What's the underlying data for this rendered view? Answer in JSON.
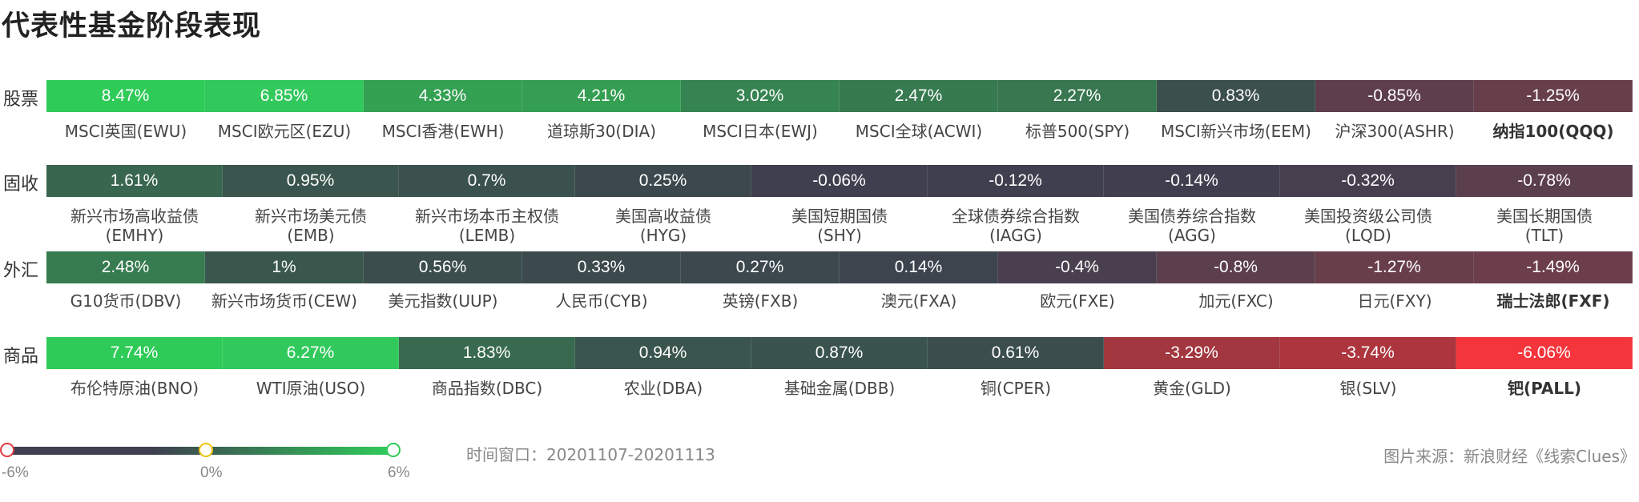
{
  "title": "代表性基金阶段表现",
  "chart_data": {
    "type": "heatmap",
    "color_scale": {
      "min": -6,
      "mid": 0,
      "max": 6,
      "min_color": "#f5323c",
      "mid_color": "#3e3f4f",
      "max_color": "#2fcc5a"
    },
    "rows": [
      {
        "label": "股票",
        "items": [
          {
            "value": "8.47%",
            "num": 8.47,
            "name": "MSCI英国(EWU)",
            "color": "#2fcb58"
          },
          {
            "value": "6.85%",
            "num": 6.85,
            "name": "MSCI欧元区(EZU)",
            "color": "#31c85c"
          },
          {
            "value": "4.33%",
            "num": 4.33,
            "name": "MSCI香港(EWH)",
            "color": "#33a052"
          },
          {
            "value": "4.21%",
            "num": 4.21,
            "name": "道琼斯30(DIA)",
            "color": "#349e52"
          },
          {
            "value": "3.02%",
            "num": 3.02,
            "name": "MSCI日本(EWJ)",
            "color": "#368451"
          },
          {
            "value": "2.47%",
            "num": 2.47,
            "name": "MSCI全球(ACWI)",
            "color": "#377a50"
          },
          {
            "value": "2.27%",
            "num": 2.27,
            "name": "标普500(SPY)",
            "color": "#387750"
          },
          {
            "value": "0.83%",
            "num": 0.83,
            "name": "MSCI新兴市场(EEM)",
            "color": "#3b4f4c"
          },
          {
            "value": "-0.85%",
            "num": -0.85,
            "name": "沪深300(ASHR)",
            "color": "#5e3e4c"
          },
          {
            "value": "-1.25%",
            "num": -1.25,
            "name": "纳指100(QQQ)",
            "color": "#673f4b",
            "bold": true
          }
        ]
      },
      {
        "label": "固收",
        "items": [
          {
            "value": "1.61%",
            "num": 1.61,
            "name": "新兴市场高收益债\n(EMHY)",
            "color": "#39664f"
          },
          {
            "value": "0.95%",
            "num": 0.95,
            "name": "新兴市场美元债\n(EMB)",
            "color": "#3a554d"
          },
          {
            "value": "0.7%",
            "num": 0.7,
            "name": "新兴市场本币主权债\n(LEMB)",
            "color": "#3b514d"
          },
          {
            "value": "0.25%",
            "num": 0.25,
            "name": "美国高收益债\n(HYG)",
            "color": "#3c484d"
          },
          {
            "value": "-0.06%",
            "num": -0.06,
            "name": "美国短期国债\n(SHY)",
            "color": "#3f3f4f"
          },
          {
            "value": "-0.12%",
            "num": -0.12,
            "name": "全球债券综合指数\n(IAGG)",
            "color": "#403f4f"
          },
          {
            "value": "-0.14%",
            "num": -0.14,
            "name": "美国债券综合指数\n(AGG)",
            "color": "#413f4f"
          },
          {
            "value": "-0.32%",
            "num": -0.32,
            "name": "美国投资级公司债\n(LQD)",
            "color": "#473f4e"
          },
          {
            "value": "-0.78%",
            "num": -0.78,
            "name": "美国长期国债\n(TLT)",
            "color": "#5c3f4c"
          }
        ]
      },
      {
        "label": "外汇",
        "items": [
          {
            "value": "2.48%",
            "num": 2.48,
            "name": "G10货币(DBV)",
            "color": "#377b50"
          },
          {
            "value": "1%",
            "num": 1,
            "name": "新兴市场货币(CEW)",
            "color": "#3a574d"
          },
          {
            "value": "0.56%",
            "num": 0.56,
            "name": "美元指数(UUP)",
            "color": "#3b4d4d"
          },
          {
            "value": "0.33%",
            "num": 0.33,
            "name": "人民币(CYB)",
            "color": "#3c494d"
          },
          {
            "value": "0.27%",
            "num": 0.27,
            "name": "英镑(FXB)",
            "color": "#3c474e"
          },
          {
            "value": "0.14%",
            "num": 0.14,
            "name": "澳元(FXA)",
            "color": "#3d444e"
          },
          {
            "value": "-0.4%",
            "num": -0.4,
            "name": "欧元(FXE)",
            "color": "#4a3f4e"
          },
          {
            "value": "-0.8%",
            "num": -0.8,
            "name": "加元(FXC)",
            "color": "#5c3f4c"
          },
          {
            "value": "-1.27%",
            "num": -1.27,
            "name": "日元(FXY)",
            "color": "#683e4b"
          },
          {
            "value": "-1.49%",
            "num": -1.49,
            "name": "瑞士法郎(FXF)",
            "color": "#6c3e4b",
            "bold": true
          }
        ]
      },
      {
        "label": "商品",
        "items": [
          {
            "value": "7.74%",
            "num": 7.74,
            "name": "布伦特原油(BNO)",
            "color": "#2fcb58"
          },
          {
            "value": "6.27%",
            "num": 6.27,
            "name": "WTI原油(USO)",
            "color": "#31c95c"
          },
          {
            "value": "1.83%",
            "num": 1.83,
            "name": "商品指数(DBC)",
            "color": "#386a4f"
          },
          {
            "value": "0.94%",
            "num": 0.94,
            "name": "农业(DBA)",
            "color": "#3a554d"
          },
          {
            "value": "0.87%",
            "num": 0.87,
            "name": "基础金属(DBB)",
            "color": "#3a534d"
          },
          {
            "value": "0.61%",
            "num": 0.61,
            "name": "铜(CPER)",
            "color": "#3b4e4d"
          },
          {
            "value": "-3.29%",
            "num": -3.29,
            "name": "黄金(GLD)",
            "color": "#a2373f"
          },
          {
            "value": "-3.74%",
            "num": -3.74,
            "name": "银(SLV)",
            "color": "#ad353e"
          },
          {
            "value": "-6.06%",
            "num": -6.06,
            "name": "钯(PALL)",
            "color": "#f4353c",
            "bold": true
          }
        ]
      }
    ]
  },
  "legend": {
    "min_label": "-6%",
    "mid_label": "0%",
    "max_label": "6%"
  },
  "time_window": "时间窗口：20201107-20201113",
  "source": "图片来源：新浪财经《线索Clues》"
}
